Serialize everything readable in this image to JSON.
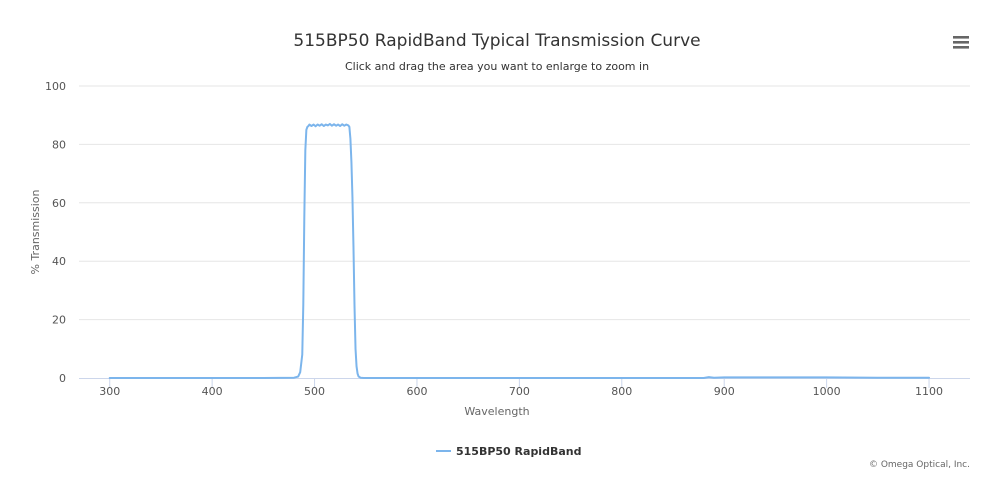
{
  "chart_data": {
    "type": "line",
    "title": "515BP50 RapidBand Typical Transmission Curve",
    "subtitle": "Click and drag the area you want to enlarge to zoom in",
    "xlabel": "Wavelength",
    "ylabel": "% Transmission",
    "xlim": [
      270,
      1140
    ],
    "ylim": [
      0,
      100
    ],
    "x_ticks": [
      300,
      400,
      500,
      600,
      700,
      800,
      900,
      1000,
      1100
    ],
    "y_ticks": [
      0,
      20,
      40,
      60,
      80,
      100
    ],
    "grid": "horizontal",
    "legend_position": "bottom-center",
    "series": [
      {
        "name": "515BP50 RapidBand",
        "color": "#7cb5ec",
        "x": [
          300,
          450,
          480,
          484,
          486,
          488,
          489,
          490,
          491,
          492,
          493,
          494,
          495,
          497,
          499,
          501,
          503,
          505,
          507,
          509,
          511,
          513,
          515,
          517,
          519,
          521,
          523,
          525,
          527,
          529,
          531,
          533,
          534,
          535,
          536,
          537,
          538,
          539,
          540,
          541,
          542,
          543,
          545,
          548,
          560,
          700,
          880,
          885,
          890,
          900,
          1000,
          1050,
          1100
        ],
        "y": [
          0,
          0,
          0.1,
          0.5,
          2,
          8,
          25,
          55,
          78,
          85,
          86,
          86.3,
          86.8,
          86.3,
          86.8,
          86.2,
          86.8,
          86.4,
          86.9,
          86.3,
          86.8,
          86.5,
          87,
          86.4,
          86.9,
          86.4,
          86.8,
          86.3,
          86.9,
          86.4,
          86.8,
          86.5,
          86,
          82,
          74,
          62,
          45,
          25,
          10,
          4,
          1.5,
          0.5,
          0.1,
          0,
          0,
          0,
          0,
          0.3,
          0.1,
          0.2,
          0.2,
          0.1,
          0.1
        ]
      }
    ]
  },
  "credits": "© Omega Optical, Inc.",
  "menu": {
    "icon": "hamburger-menu-icon"
  }
}
